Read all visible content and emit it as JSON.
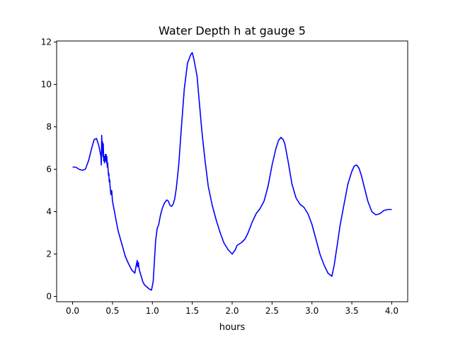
{
  "chart_data": {
    "type": "line",
    "title": "Water Depth h at gauge 5",
    "xlabel": "hours",
    "ylabel": "",
    "xlim": [
      -0.2,
      4.2
    ],
    "ylim": [
      -0.25,
      12.05
    ],
    "xticks": [
      0.0,
      0.5,
      1.0,
      1.5,
      2.0,
      2.5,
      3.0,
      3.5,
      4.0
    ],
    "xtick_labels": [
      "0.0",
      "0.5",
      "1.0",
      "1.5",
      "2.0",
      "2.5",
      "3.0",
      "3.5",
      "4.0"
    ],
    "yticks": [
      0,
      2,
      4,
      6,
      8,
      10,
      12
    ],
    "ytick_labels": [
      "0",
      "2",
      "4",
      "6",
      "8",
      "10",
      "12"
    ],
    "grid": false,
    "series": [
      {
        "color": "#0000ff",
        "x": [
          0.0,
          0.04,
          0.08,
          0.12,
          0.16,
          0.2,
          0.24,
          0.27,
          0.3,
          0.33,
          0.355,
          0.36,
          0.365,
          0.37,
          0.375,
          0.38,
          0.385,
          0.39,
          0.395,
          0.4,
          0.405,
          0.41,
          0.415,
          0.42,
          0.425,
          0.43,
          0.435,
          0.44,
          0.445,
          0.45,
          0.455,
          0.46,
          0.465,
          0.47,
          0.48,
          0.49,
          0.5,
          0.51,
          0.52,
          0.53,
          0.55,
          0.57,
          0.6,
          0.63,
          0.66,
          0.7,
          0.74,
          0.78,
          0.8,
          0.81,
          0.815,
          0.82,
          0.825,
          0.83,
          0.84,
          0.86,
          0.88,
          0.9,
          0.93,
          0.96,
          0.99,
          1.01,
          1.02,
          1.04,
          1.06,
          1.08,
          1.1,
          1.12,
          1.15,
          1.18,
          1.2,
          1.22,
          1.24,
          1.26,
          1.28,
          1.3,
          1.33,
          1.36,
          1.4,
          1.44,
          1.48,
          1.5,
          1.52,
          1.54,
          1.56,
          1.58,
          1.62,
          1.66,
          1.7,
          1.75,
          1.8,
          1.85,
          1.9,
          1.95,
          2.0,
          2.02,
          2.04,
          2.06,
          2.08,
          2.12,
          2.16,
          2.2,
          2.25,
          2.3,
          2.35,
          2.4,
          2.45,
          2.5,
          2.55,
          2.58,
          2.61,
          2.64,
          2.66,
          2.7,
          2.75,
          2.8,
          2.85,
          2.9,
          2.95,
          3.0,
          3.05,
          3.1,
          3.15,
          3.2,
          3.25,
          3.28,
          3.3,
          3.32,
          3.35,
          3.4,
          3.45,
          3.5,
          3.53,
          3.56,
          3.59,
          3.62,
          3.66,
          3.7,
          3.75,
          3.8,
          3.85,
          3.9,
          3.95,
          4.0
        ],
        "y": [
          6.1,
          6.1,
          6.0,
          5.95,
          6.0,
          6.4,
          7.0,
          7.4,
          7.45,
          7.1,
          6.6,
          6.2,
          7.6,
          6.8,
          7.3,
          6.6,
          7.2,
          6.4,
          6.6,
          6.3,
          6.5,
          6.7,
          6.4,
          6.7,
          6.3,
          6.6,
          6.1,
          6.3,
          6.0,
          5.7,
          5.8,
          5.4,
          5.5,
          5.2,
          4.8,
          5.0,
          4.5,
          4.3,
          4.1,
          3.9,
          3.5,
          3.1,
          2.7,
          2.3,
          1.9,
          1.55,
          1.25,
          1.1,
          1.5,
          1.7,
          1.4,
          1.5,
          1.6,
          1.4,
          1.2,
          0.95,
          0.7,
          0.55,
          0.45,
          0.35,
          0.3,
          0.7,
          1.3,
          2.6,
          3.2,
          3.4,
          3.8,
          4.1,
          4.4,
          4.55,
          4.5,
          4.3,
          4.25,
          4.35,
          4.6,
          5.1,
          6.2,
          7.8,
          9.8,
          11.0,
          11.4,
          11.5,
          11.2,
          10.8,
          10.4,
          9.5,
          7.8,
          6.4,
          5.2,
          4.3,
          3.6,
          3.0,
          2.5,
          2.2,
          2.0,
          2.1,
          2.2,
          2.4,
          2.45,
          2.55,
          2.7,
          3.0,
          3.5,
          3.9,
          4.15,
          4.5,
          5.2,
          6.2,
          7.0,
          7.35,
          7.5,
          7.4,
          7.2,
          6.4,
          5.3,
          4.65,
          4.35,
          4.2,
          3.9,
          3.4,
          2.7,
          2.0,
          1.5,
          1.1,
          0.95,
          1.5,
          2.0,
          2.5,
          3.3,
          4.3,
          5.3,
          5.9,
          6.15,
          6.2,
          6.05,
          5.7,
          5.1,
          4.5,
          4.0,
          3.85,
          3.9,
          4.05,
          4.1,
          4.1
        ]
      }
    ]
  }
}
